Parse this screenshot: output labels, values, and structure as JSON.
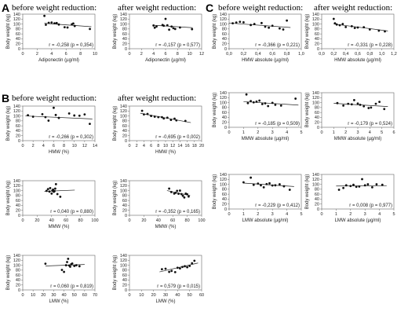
{
  "figure": {
    "sections": [
      {
        "letter": "A",
        "before_heading": "before weight reduction:",
        "after_heading": "after weight reduction:"
      },
      {
        "letter": "B",
        "before_heading": "before weight reduction:",
        "after_heading": "after weight reduction:"
      },
      {
        "letter": "C",
        "before_heading": "before weight reduction:",
        "after_heading": "after weight reduction:"
      }
    ]
  },
  "chart_data": [
    {
      "id": "A1",
      "type": "scatter",
      "xlabel": "Adiponectin (µg/ml)",
      "ylabel": "Body weight (kg)",
      "xlim": [
        0,
        10
      ],
      "ylim": [
        0,
        140
      ],
      "xticks": [
        "0",
        "2",
        "4",
        "6",
        "8",
        "10"
      ],
      "yticks": [
        "0",
        "20",
        "40",
        "60",
        "80",
        "100",
        "120",
        "140"
      ],
      "stat": "r = -0,258  (p = 0,354)",
      "points": [
        [
          3,
          133
        ],
        [
          3.2,
          97
        ],
        [
          3.6,
          105
        ],
        [
          4,
          106
        ],
        [
          4.4,
          103
        ],
        [
          4.7,
          104
        ],
        [
          5,
          98
        ],
        [
          5.8,
          87
        ],
        [
          6.2,
          86
        ],
        [
          6.8,
          99
        ],
        [
          7,
          102
        ],
        [
          7.2,
          92
        ],
        [
          9.3,
          80
        ]
      ],
      "trend": [
        [
          3,
          103
        ],
        [
          9.5,
          89
        ]
      ]
    },
    {
      "id": "A2",
      "type": "scatter",
      "xlabel": "Adiponectin (µg/ml)",
      "ylabel": "Body weight (kg)",
      "xlim": [
        0,
        12
      ],
      "ylim": [
        0,
        140
      ],
      "xticks": [
        "0",
        "2",
        "4",
        "6",
        "8",
        "10",
        "12"
      ],
      "yticks": [
        "0",
        "20",
        "40",
        "60",
        "80",
        "100",
        "120",
        "140"
      ],
      "stat": "r = -0,157  (p = 0,577)",
      "points": [
        [
          4,
          94
        ],
        [
          4.2,
          85
        ],
        [
          4.5,
          90
        ],
        [
          5.5,
          96
        ],
        [
          5.7,
          93
        ],
        [
          6,
          121
        ],
        [
          6.3,
          95
        ],
        [
          6.6,
          77
        ],
        [
          7,
          90
        ],
        [
          7.3,
          83
        ],
        [
          7.6,
          80
        ],
        [
          8.4,
          86
        ],
        [
          10.4,
          79
        ]
      ],
      "trend": [
        [
          4,
          95
        ],
        [
          10.5,
          85
        ]
      ]
    },
    {
      "id": "B1",
      "type": "scatter",
      "xlabel": "HMW (%)",
      "ylabel": "Body weight (kg)",
      "xlim": [
        0,
        14
      ],
      "ylim": [
        0,
        140
      ],
      "xticks": [
        "0",
        "2",
        "4",
        "6",
        "8",
        "10",
        "12",
        "14"
      ],
      "yticks": [
        "0",
        "20",
        "40",
        "60",
        "80",
        "100",
        "120",
        "140"
      ],
      "stat": "r = -0,266  (p = 0,302)",
      "points": [
        [
          1,
          103
        ],
        [
          2,
          97
        ],
        [
          3.8,
          107
        ],
        [
          4.4,
          95
        ],
        [
          5,
          81
        ],
        [
          6,
          133
        ],
        [
          6.4,
          104
        ],
        [
          7,
          92
        ],
        [
          9,
          110
        ],
        [
          10,
          102
        ],
        [
          11,
          101
        ],
        [
          12,
          106
        ],
        [
          13,
          68
        ]
      ],
      "trend": [
        [
          0.5,
          100
        ],
        [
          13.5,
          88
        ]
      ]
    },
    {
      "id": "B2",
      "type": "scatter",
      "xlabel": "HMW (%)",
      "ylabel": "Body weight (kg)",
      "xlim": [
        0,
        20
      ],
      "ylim": [
        0,
        140
      ],
      "xticks": [
        "0",
        "2",
        "4",
        "6",
        "8",
        "10",
        "12",
        "14",
        "16",
        "18",
        "20"
      ],
      "yticks": [
        "0",
        "20",
        "40",
        "60",
        "80",
        "100",
        "120",
        "140"
      ],
      "stat": "r = -0,695  (p = 0,002)",
      "points": [
        [
          3.5,
          121
        ],
        [
          4,
          106
        ],
        [
          5,
          108
        ],
        [
          6,
          100
        ],
        [
          7,
          97
        ],
        [
          8,
          95
        ],
        [
          9,
          95
        ],
        [
          9.5,
          90
        ],
        [
          10.5,
          93
        ],
        [
          11.5,
          84
        ],
        [
          12.5,
          89
        ],
        [
          13,
          82
        ],
        [
          15.5,
          80
        ]
      ],
      "trend": [
        [
          3,
          111
        ],
        [
          17,
          73
        ]
      ]
    },
    {
      "id": "B3",
      "type": "scatter",
      "xlabel": "MMW (%)",
      "ylabel": "Body weight (kg)",
      "xlim": [
        0,
        100
      ],
      "ylim": [
        0,
        140
      ],
      "xticks": [
        "0",
        "20",
        "40",
        "60",
        "80",
        "100"
      ],
      "yticks": [
        "0",
        "20",
        "40",
        "60",
        "80",
        "100",
        "120",
        "140"
      ],
      "stat": "r = 0,040  (p = 0,880)",
      "points": [
        [
          33,
          99
        ],
        [
          35,
          106
        ],
        [
          37,
          96
        ],
        [
          38,
          110
        ],
        [
          40,
          88
        ],
        [
          41,
          100
        ],
        [
          42,
          104
        ],
        [
          43,
          95
        ],
        [
          44,
          98
        ],
        [
          45,
          108
        ],
        [
          46,
          126
        ],
        [
          48,
          86
        ],
        [
          52,
          75
        ]
      ],
      "trend": [
        [
          30,
          97
        ],
        [
          72,
          102
        ]
      ]
    },
    {
      "id": "B4",
      "type": "scatter",
      "xlabel": "MMW (%)",
      "ylabel": "Body weight (kg)",
      "xlim": [
        0,
        100
      ],
      "ylim": [
        0,
        140
      ],
      "xticks": [
        "0",
        "20",
        "40",
        "60",
        "80",
        "100"
      ],
      "yticks": [
        "0",
        "20",
        "40",
        "60",
        "80",
        "100",
        "120",
        "140"
      ],
      "stat": "r = -0,352  (p = 0,165)",
      "points": [
        [
          55,
          108
        ],
        [
          58,
          94
        ],
        [
          62,
          88
        ],
        [
          64,
          91
        ],
        [
          66,
          99
        ],
        [
          68,
          87
        ],
        [
          70,
          100
        ],
        [
          72,
          86
        ],
        [
          74,
          79
        ],
        [
          76,
          72
        ],
        [
          78,
          88
        ],
        [
          80,
          85
        ],
        [
          82,
          76
        ]
      ],
      "trend": [
        [
          52,
          100
        ],
        [
          84,
          80
        ]
      ]
    },
    {
      "id": "B5",
      "type": "scatter",
      "xlabel": "LMW (%)",
      "ylabel": "Body weight (kg)",
      "xlim": [
        0,
        70
      ],
      "ylim": [
        0,
        140
      ],
      "xticks": [
        "0",
        "10",
        "20",
        "30",
        "40",
        "50",
        "60",
        "70"
      ],
      "yticks": [
        "0",
        "20",
        "40",
        "60",
        "80",
        "100",
        "120",
        "140"
      ],
      "stat": "r = 0,060  (p = 0,819)",
      "points": [
        [
          22,
          106
        ],
        [
          38,
          81
        ],
        [
          40,
          73
        ],
        [
          42,
          100
        ],
        [
          43,
          113
        ],
        [
          44,
          126
        ],
        [
          45,
          99
        ],
        [
          46,
          94
        ],
        [
          47,
          104
        ],
        [
          48,
          107
        ],
        [
          50,
          97
        ],
        [
          52,
          100
        ],
        [
          55,
          96
        ]
      ],
      "trend": [
        [
          22,
          97
        ],
        [
          60,
          103
        ]
      ]
    },
    {
      "id": "B6",
      "type": "scatter",
      "xlabel": "LMW (%)",
      "ylabel": "Body weight (kg)",
      "xlim": [
        0,
        60
      ],
      "ylim": [
        0,
        140
      ],
      "xticks": [
        "0",
        "10",
        "20",
        "30",
        "40",
        "50",
        "60"
      ],
      "yticks": [
        "0",
        "20",
        "40",
        "60",
        "80",
        "100",
        "120",
        "140"
      ],
      "stat": "r = 0,579  (p = 0,015)",
      "points": [
        [
          27,
          84
        ],
        [
          30,
          86
        ],
        [
          33,
          73
        ],
        [
          35,
          77
        ],
        [
          38,
          72
        ],
        [
          40,
          90
        ],
        [
          42,
          87
        ],
        [
          44,
          93
        ],
        [
          46,
          96
        ],
        [
          48,
          92
        ],
        [
          50,
          97
        ],
        [
          52,
          108
        ],
        [
          54,
          118
        ]
      ],
      "trend": [
        [
          25,
          73
        ],
        [
          57,
          109
        ]
      ]
    },
    {
      "id": "C1",
      "type": "scatter",
      "xlabel": "HMW absolute (µg/ml)",
      "ylabel": "Body weight (kg)",
      "xlim": [
        0,
        1
      ],
      "ylim": [
        0,
        140
      ],
      "xticks": [
        "0,0",
        "0,2",
        "0,4",
        "0,6",
        "0,8",
        "1,0"
      ],
      "yticks": [
        "0",
        "20",
        "40",
        "60",
        "80",
        "100",
        "120",
        "140"
      ],
      "stat": "r = -0,366  (p = 0,221)",
      "points": [
        [
          0.05,
          103
        ],
        [
          0.1,
          106
        ],
        [
          0.15,
          109
        ],
        [
          0.2,
          107
        ],
        [
          0.3,
          96
        ],
        [
          0.35,
          100
        ],
        [
          0.45,
          104
        ],
        [
          0.5,
          89
        ],
        [
          0.55,
          85
        ],
        [
          0.6,
          93
        ],
        [
          0.7,
          82
        ],
        [
          0.75,
          78
        ],
        [
          0.8,
          114
        ]
      ],
      "trend": [
        [
          0,
          104
        ],
        [
          0.85,
          86
        ]
      ]
    },
    {
      "id": "C2",
      "type": "scatter",
      "xlabel": "HMW absolute (µg/ml)",
      "ylabel": "Body weight (kg)",
      "xlim": [
        0,
        1.2
      ],
      "ylim": [
        0,
        140
      ],
      "xticks": [
        "0,0",
        "0,2",
        "0,4",
        "0,6",
        "0,8",
        "1,0",
        "1,2"
      ],
      "yticks": [
        "0",
        "20",
        "40",
        "60",
        "80",
        "100",
        "120",
        "140"
      ],
      "stat": "r = -0,331  (p = 0,228)",
      "points": [
        [
          0.2,
          121
        ],
        [
          0.22,
          103
        ],
        [
          0.25,
          98
        ],
        [
          0.3,
          95
        ],
        [
          0.35,
          100
        ],
        [
          0.4,
          88
        ],
        [
          0.5,
          91
        ],
        [
          0.55,
          84
        ],
        [
          0.6,
          86
        ],
        [
          0.7,
          87
        ],
        [
          0.8,
          78
        ],
        [
          0.95,
          73
        ],
        [
          1.05,
          70
        ]
      ],
      "trend": [
        [
          0.2,
          100
        ],
        [
          1.1,
          72
        ]
      ]
    },
    {
      "id": "C3",
      "type": "scatter",
      "xlabel": "MMW absolute (µg/ml)",
      "ylabel": "Body weight (kg)",
      "xlim": [
        0,
        5
      ],
      "ylim": [
        0,
        140
      ],
      "xticks": [
        "0",
        "1",
        "2",
        "3",
        "4",
        "5"
      ],
      "yticks": [
        "0",
        "20",
        "40",
        "60",
        "80",
        "100",
        "120",
        "140"
      ],
      "stat": "r = -0,185  (p = 0,509)",
      "points": [
        [
          1.2,
          133
        ],
        [
          1.3,
          98
        ],
        [
          1.5,
          106
        ],
        [
          1.7,
          101
        ],
        [
          1.9,
          104
        ],
        [
          2.1,
          108
        ],
        [
          2.3,
          94
        ],
        [
          2.5,
          97
        ],
        [
          2.7,
          86
        ],
        [
          3,
          99
        ],
        [
          3.2,
          91
        ],
        [
          3.6,
          88
        ],
        [
          4.6,
          116
        ]
      ],
      "trend": [
        [
          1,
          104
        ],
        [
          4.8,
          90
        ]
      ]
    },
    {
      "id": "C4",
      "type": "scatter",
      "xlabel": "MMW absolute (µg/ml)",
      "ylabel": "Body weight (kg)",
      "xlim": [
        0,
        6
      ],
      "ylim": [
        0,
        140
      ],
      "xticks": [
        "0",
        "1",
        "2",
        "3",
        "4",
        "5",
        "6"
      ],
      "yticks": [
        "0",
        "20",
        "40",
        "60",
        "80",
        "100",
        "120",
        "140"
      ],
      "stat": "r = -0,179  (p = 0,524)",
      "points": [
        [
          1.3,
          98
        ],
        [
          1.8,
          88
        ],
        [
          2.2,
          95
        ],
        [
          2.5,
          93
        ],
        [
          2.7,
          110
        ],
        [
          3,
          96
        ],
        [
          3.2,
          91
        ],
        [
          3.5,
          85
        ],
        [
          3.9,
          78
        ],
        [
          4.1,
          80
        ],
        [
          4.5,
          95
        ],
        [
          4.8,
          103
        ],
        [
          5.2,
          74
        ]
      ],
      "trend": [
        [
          1,
          97
        ],
        [
          5.5,
          84
        ]
      ]
    },
    {
      "id": "C5",
      "type": "scatter",
      "xlabel": "LMW absolute (µg/ml)",
      "ylabel": "Body weight (kg)",
      "xlim": [
        0,
        5
      ],
      "ylim": [
        0,
        140
      ],
      "xticks": [
        "0",
        "1",
        "2",
        "3",
        "4",
        "5"
      ],
      "yticks": [
        "0",
        "20",
        "40",
        "60",
        "80",
        "100",
        "120",
        "140"
      ],
      "stat": "r = -0,229  (p = 0,412)",
      "points": [
        [
          1,
          108
        ],
        [
          1.5,
          127
        ],
        [
          1.7,
          98
        ],
        [
          2,
          103
        ],
        [
          2.2,
          96
        ],
        [
          2.4,
          88
        ],
        [
          2.6,
          101
        ],
        [
          2.8,
          104
        ],
        [
          3,
          95
        ],
        [
          3.2,
          96
        ],
        [
          3.5,
          100
        ],
        [
          3.8,
          92
        ],
        [
          4.2,
          78
        ]
      ],
      "trend": [
        [
          1,
          105
        ],
        [
          4.5,
          91
        ]
      ]
    },
    {
      "id": "C6",
      "type": "scatter",
      "xlabel": "LMW absolute (µg/ml)",
      "ylabel": "Body weight (kg)",
      "xlim": [
        0,
        5
      ],
      "ylim": [
        0,
        140
      ],
      "xticks": [
        "0",
        "1",
        "2",
        "3",
        "4",
        "5"
      ],
      "yticks": [
        "0",
        "20",
        "40",
        "60",
        "80",
        "100",
        "120",
        "140"
      ],
      "stat": "r = 0,008  (p = 0,977)",
      "points": [
        [
          1.2,
          78
        ],
        [
          1.5,
          85
        ],
        [
          1.7,
          96
        ],
        [
          2,
          93
        ],
        [
          2.2,
          98
        ],
        [
          2.4,
          90
        ],
        [
          2.6,
          91
        ],
        [
          2.8,
          121
        ],
        [
          3,
          96
        ],
        [
          3.2,
          100
        ],
        [
          3.5,
          88
        ],
        [
          3.8,
          100
        ],
        [
          4.2,
          98
        ]
      ],
      "trend": [
        [
          1,
          93
        ],
        [
          4.5,
          94
        ]
      ]
    }
  ]
}
